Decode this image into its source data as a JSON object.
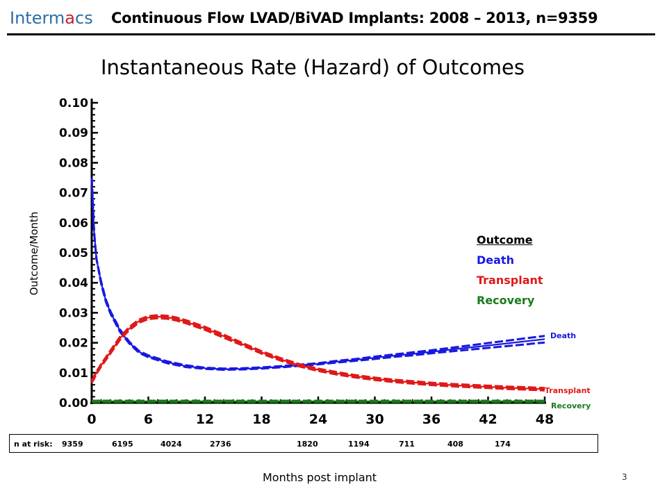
{
  "header": {
    "logo_main": "Interm",
    "logo_accent": "a",
    "logo_tail": "cs",
    "title": "Continuous Flow LVAD/BiVAD Implants: 2008 – 2013, n=9359"
  },
  "slide_title": "Instantaneous Rate (Hazard) of Outcomes",
  "page_number": "3",
  "risk_table": {
    "label": "n at risk:",
    "values": [
      "9359",
      "6195",
      "4024",
      "2736",
      "1820",
      "1194",
      "711",
      "408",
      "174"
    ]
  },
  "legend": {
    "heading": "Outcome",
    "items": [
      {
        "name": "Death",
        "color": "#1818e0"
      },
      {
        "name": "Transplant",
        "color": "#e01818"
      },
      {
        "name": "Recovery",
        "color": "#1a7a1a"
      }
    ]
  },
  "colors": {
    "death": "#1818e0",
    "transplant": "#e01818",
    "recovery": "#1a7a1a"
  },
  "chart_data": {
    "type": "line",
    "title": "Instantaneous Rate (Hazard) of Outcomes",
    "xlabel": "Months post implant",
    "ylabel": "Outcome/Month",
    "xlim": [
      0,
      48
    ],
    "ylim": [
      0,
      0.1
    ],
    "x_ticks": [
      "0",
      "6",
      "12",
      "18",
      "24",
      "30",
      "36",
      "42",
      "48"
    ],
    "y_ticks": [
      "0.00",
      "0.01",
      "0.02",
      "0.03",
      "0.04",
      "0.05",
      "0.06",
      "0.07",
      "0.08",
      "0.09",
      "0.10"
    ],
    "end_labels": [
      "Death",
      "Transplant",
      "Recovery"
    ],
    "series": [
      {
        "name": "Death",
        "color": "#1818e0",
        "x": [
          0,
          0.25,
          0.5,
          1,
          1.5,
          2,
          3,
          4,
          5,
          6,
          8,
          10,
          12,
          14,
          16,
          18,
          20,
          22,
          24,
          26,
          28,
          30,
          32,
          34,
          36,
          38,
          40,
          42,
          44,
          46,
          48
        ],
        "y": [
          0.075,
          0.057,
          0.048,
          0.04,
          0.034,
          0.03,
          0.024,
          0.02,
          0.017,
          0.0155,
          0.0135,
          0.0122,
          0.0115,
          0.0112,
          0.0113,
          0.0116,
          0.012,
          0.0125,
          0.013,
          0.0137,
          0.0143,
          0.015,
          0.0157,
          0.0163,
          0.017,
          0.0177,
          0.0184,
          0.0191,
          0.0198,
          0.0205,
          0.0212
        ],
        "ci_spread": [
          0,
          0,
          0,
          0.0004,
          0.0004,
          0.0004,
          0.0004,
          0.0003,
          0.0003,
          0.0003,
          0.0003,
          0.0003,
          0.0002,
          0.0002,
          0.0002,
          0.0002,
          0.0002,
          0.0002,
          0.0002,
          0.0003,
          0.0003,
          0.0004,
          0.0004,
          0.0005,
          0.0005,
          0.0006,
          0.0007,
          0.0008,
          0.0009,
          0.001,
          0.0011
        ]
      },
      {
        "name": "Transplant",
        "color": "#e01818",
        "x": [
          0,
          0.5,
          1,
          2,
          3,
          4,
          5,
          6,
          7,
          8,
          9,
          10,
          12,
          14,
          16,
          18,
          20,
          22,
          24,
          26,
          28,
          30,
          32,
          34,
          36,
          38,
          40,
          42,
          44,
          46,
          48
        ],
        "y": [
          0.007,
          0.01,
          0.0125,
          0.017,
          0.0215,
          0.0248,
          0.0272,
          0.0284,
          0.0287,
          0.0285,
          0.0279,
          0.027,
          0.0248,
          0.0222,
          0.0195,
          0.0168,
          0.0145,
          0.0125,
          0.011,
          0.0098,
          0.0088,
          0.008,
          0.0073,
          0.0068,
          0.0063,
          0.0059,
          0.0056,
          0.0053,
          0.005,
          0.0048,
          0.0045
        ],
        "ci_spread": [
          0.0004,
          0.0004,
          0.0004,
          0.0005,
          0.0005,
          0.0005,
          0.0005,
          0.0005,
          0.0005,
          0.0005,
          0.0005,
          0.0005,
          0.0005,
          0.0005,
          0.0004,
          0.0004,
          0.0004,
          0.0004,
          0.0004,
          0.0004,
          0.0004,
          0.0004,
          0.0004,
          0.0004,
          0.0004,
          0.0004,
          0.0004,
          0.0004,
          0.0004,
          0.0004,
          0.0004
        ]
      },
      {
        "name": "Recovery",
        "color": "#1a7a1a",
        "x": [
          0,
          12,
          24,
          36,
          48
        ],
        "y": [
          0.0005,
          0.0005,
          0.0005,
          0.0005,
          0.0005
        ],
        "ci_spread": [
          0.0002,
          0.0002,
          0.0002,
          0.0002,
          0.0002
        ]
      }
    ]
  }
}
